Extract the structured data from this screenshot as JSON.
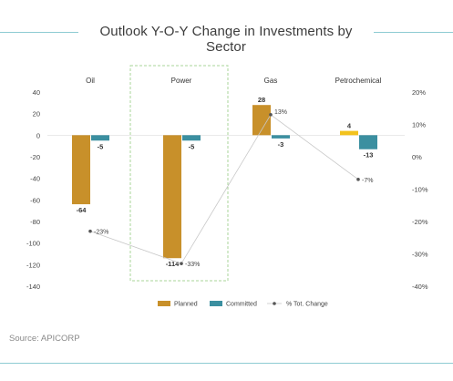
{
  "chart_title": "Outlook Y-O-Y Change in Investments by Sector",
  "source": "Source: APICORP",
  "colors": {
    "planned": "#c8902a",
    "committed": "#3b8fa0",
    "highlight_bar": "#f2c21d",
    "line": "#c8c8c8",
    "marker": "#555555",
    "highlight_box": "#a8d69a",
    "title_rule": "#8ecbd3"
  },
  "chart_data": {
    "type": "bar",
    "title": "Outlook Y-O-Y Change in Investments by Sector",
    "categories": [
      "Oil",
      "Power",
      "Gas",
      "Petrochemical"
    ],
    "series": [
      {
        "name": "Planned",
        "values": [
          -64,
          -114,
          28,
          4
        ]
      },
      {
        "name": "Committed",
        "values": [
          -5,
          -5,
          -3,
          -13
        ]
      }
    ],
    "line_series": {
      "name": "% Tot. Change",
      "values": [
        -23,
        -33,
        13,
        -7
      ],
      "labels": [
        "-23%",
        "-33%",
        "13%",
        "-7%"
      ]
    },
    "ylim": [
      -140,
      40
    ],
    "yticks": [
      "40",
      "20",
      "0",
      "-20",
      "-40",
      "-60",
      "-80",
      "-100",
      "-120",
      "-140"
    ],
    "y2lim": [
      -40,
      20
    ],
    "y2ticks": [
      "20%",
      "10%",
      "0%",
      "-10%",
      "-20%",
      "-30%",
      "-40%"
    ],
    "highlighted_category": "Power",
    "highlighted_bar": {
      "category": "Petrochemical",
      "series": "Planned"
    },
    "grid": false,
    "legend_position": "bottom"
  }
}
